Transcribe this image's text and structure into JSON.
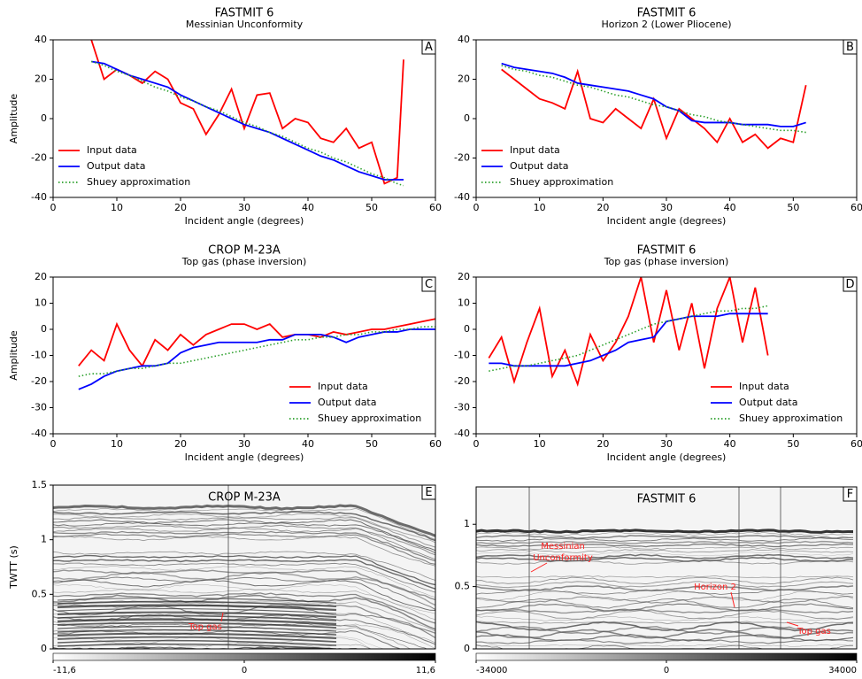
{
  "chart_data": [
    {
      "type": "line",
      "title": "FASTMIT 6",
      "subtitle": "Messinian Unconformity",
      "panel": "A",
      "ylabel": "Amplitude",
      "xlabel": "Incident angle (degrees)",
      "x": [
        6,
        8,
        10,
        12,
        14,
        16,
        18,
        20,
        22,
        24,
        26,
        28,
        30,
        32,
        34,
        36,
        38,
        40,
        42,
        44,
        46,
        48,
        50,
        52,
        54,
        55
      ],
      "series": [
        {
          "name": "Input data",
          "color": "#ff0000",
          "style": "solid",
          "values": [
            40,
            20,
            25,
            22,
            18,
            24,
            20,
            8,
            5,
            -8,
            2,
            15,
            -5,
            12,
            13,
            -5,
            0,
            -2,
            -10,
            -12,
            -5,
            -15,
            -12,
            -33,
            -30,
            30
          ]
        },
        {
          "name": "Output data",
          "color": "#0000ff",
          "style": "solid",
          "values": [
            29,
            28,
            25,
            22,
            20,
            18,
            16,
            12,
            9,
            6,
            3,
            0,
            -3,
            -5,
            -7,
            -10,
            -13,
            -16,
            -19,
            -21,
            -24,
            -27,
            -29,
            -31,
            -31,
            -31
          ]
        },
        {
          "name": "Shuey approximation",
          "color": "#2ca02c",
          "style": "dotted",
          "values": [
            29,
            27,
            24,
            22,
            19,
            16,
            14,
            11,
            9,
            6,
            4,
            1,
            -2,
            -4,
            -7,
            -9,
            -12,
            -15,
            -17,
            -20,
            -22,
            -25,
            -28,
            -30,
            -33,
            -34
          ]
        }
      ],
      "xlim": [
        0,
        60
      ],
      "xticks": [
        0,
        10,
        20,
        30,
        40,
        50,
        60
      ],
      "ylim": [
        -40,
        40
      ],
      "yticks": [
        -40,
        -20,
        0,
        20,
        40
      ],
      "legend": "lower left"
    },
    {
      "type": "line",
      "title": "FASTMIT 6",
      "subtitle": "Horizon 2 (Lower Pliocene)",
      "panel": "B",
      "xlabel": "Incident angle (degrees)",
      "x": [
        4,
        6,
        8,
        10,
        12,
        14,
        16,
        18,
        20,
        22,
        24,
        26,
        28,
        30,
        32,
        34,
        36,
        38,
        40,
        42,
        44,
        46,
        48,
        50,
        52
      ],
      "series": [
        {
          "name": "Input data",
          "color": "#ff0000",
          "style": "solid",
          "values": [
            25,
            20,
            15,
            10,
            8,
            5,
            24,
            0,
            -2,
            5,
            0,
            -5,
            10,
            -10,
            5,
            0,
            -5,
            -12,
            0,
            -12,
            -8,
            -15,
            -10,
            -12,
            17
          ]
        },
        {
          "name": "Output data",
          "color": "#0000ff",
          "style": "solid",
          "values": [
            28,
            26,
            25,
            24,
            23,
            21,
            18,
            17,
            16,
            15,
            14,
            12,
            10,
            6,
            4,
            -1,
            -2,
            -2,
            -2,
            -3,
            -3,
            -3,
            -4,
            -4,
            -2
          ]
        },
        {
          "name": "Shuey approximation",
          "color": "#2ca02c",
          "style": "dotted",
          "values": [
            27,
            25,
            24,
            22,
            21,
            19,
            17,
            16,
            14,
            12,
            11,
            9,
            7,
            6,
            4,
            2,
            1,
            -1,
            -2,
            -3,
            -4,
            -5,
            -6,
            -6,
            -7
          ]
        }
      ],
      "xlim": [
        0,
        60
      ],
      "xticks": [
        0,
        10,
        20,
        30,
        40,
        50,
        60
      ],
      "ylim": [
        -40,
        40
      ],
      "yticks": [
        -40,
        -20,
        0,
        20,
        40
      ],
      "legend": "lower left"
    },
    {
      "type": "line",
      "title": "CROP M-23A",
      "subtitle": "Top gas (phase inversion)",
      "panel": "C",
      "ylabel": "Amplitude",
      "xlabel": "Incident angle (degrees)",
      "x": [
        4,
        6,
        8,
        10,
        12,
        14,
        16,
        18,
        20,
        22,
        24,
        26,
        28,
        30,
        32,
        34,
        36,
        38,
        40,
        42,
        44,
        46,
        48,
        50,
        52,
        54,
        56,
        58,
        60
      ],
      "series": [
        {
          "name": "Input data",
          "color": "#ff0000",
          "style": "solid",
          "values": [
            -14,
            -8,
            -12,
            2,
            -8,
            -14,
            -4,
            -8,
            -2,
            -6,
            -2,
            0,
            2,
            2,
            0,
            2,
            -3,
            -2,
            -2,
            -3,
            -1,
            -2,
            -1,
            0,
            0,
            1,
            2,
            3,
            4
          ]
        },
        {
          "name": "Output data",
          "color": "#0000ff",
          "style": "solid",
          "values": [
            -23,
            -21,
            -18,
            -16,
            -15,
            -14,
            -14,
            -13,
            -9,
            -7,
            -6,
            -5,
            -5,
            -5,
            -5,
            -4,
            -4,
            -2,
            -2,
            -2,
            -3,
            -5,
            -3,
            -2,
            -1,
            -1,
            0,
            0,
            0
          ]
        },
        {
          "name": "Shuey approximation",
          "color": "#2ca02c",
          "style": "dotted",
          "values": [
            -18,
            -17,
            -17,
            -16,
            -15,
            -15,
            -14,
            -13,
            -13,
            -12,
            -11,
            -10,
            -9,
            -8,
            -7,
            -6,
            -5,
            -4,
            -4,
            -3,
            -3,
            -2,
            -2,
            -1,
            -1,
            0,
            0,
            1,
            1
          ]
        }
      ],
      "xlim": [
        0,
        60
      ],
      "xticks": [
        0,
        10,
        20,
        30,
        40,
        50,
        60
      ],
      "ylim": [
        -40,
        20
      ],
      "yticks": [
        -40,
        -30,
        -20,
        -10,
        0,
        10,
        20
      ],
      "legend": "lower right"
    },
    {
      "type": "line",
      "title": "FASTMIT 6",
      "subtitle": "Top gas (phase inversion)",
      "panel": "D",
      "xlabel": "Incident angle (degrees)",
      "x": [
        2,
        4,
        6,
        8,
        10,
        12,
        14,
        16,
        18,
        20,
        22,
        24,
        26,
        28,
        30,
        32,
        34,
        36,
        38,
        40,
        42,
        44,
        46
      ],
      "series": [
        {
          "name": "Input data",
          "color": "#ff0000",
          "style": "solid",
          "values": [
            -11,
            -3,
            -20,
            -5,
            8,
            -18,
            -8,
            -21,
            -2,
            -12,
            -5,
            5,
            20,
            -5,
            15,
            -8,
            10,
            -15,
            8,
            20,
            -5,
            16,
            -10
          ]
        },
        {
          "name": "Output data",
          "color": "#0000ff",
          "style": "solid",
          "values": [
            -13,
            -13,
            -14,
            -14,
            -14,
            -14,
            -14,
            -13,
            -12,
            -10,
            -8,
            -5,
            -4,
            -3,
            3,
            4,
            5,
            5,
            5,
            6,
            6,
            6,
            6
          ]
        },
        {
          "name": "Shuey approximation",
          "color": "#2ca02c",
          "style": "dotted",
          "values": [
            -16,
            -15,
            -14,
            -14,
            -13,
            -12,
            -11,
            -10,
            -8,
            -6,
            -4,
            -2,
            0,
            2,
            3,
            4,
            5,
            6,
            7,
            7,
            8,
            8,
            9
          ]
        }
      ],
      "xlim": [
        0,
        60
      ],
      "xticks": [
        0,
        10,
        20,
        30,
        40,
        50,
        60
      ],
      "ylim": [
        -40,
        20
      ],
      "yticks": [
        -40,
        -30,
        -20,
        -10,
        0,
        10,
        20
      ],
      "legend": "lower right"
    },
    {
      "type": "seismic",
      "title": "CROP M-23A",
      "panel": "E",
      "ylabel": "TWTT (s)",
      "ylim": [
        0,
        1.5
      ],
      "yticks": [
        0,
        0.5,
        1,
        1.5
      ],
      "cblim": [
        -11.6,
        11.6
      ],
      "cbticks": [
        {
          "value": -11.6,
          "label": "-11,6"
        },
        0,
        {
          "value": 11.6,
          "label": "11,6"
        }
      ],
      "annotations": [
        {
          "text": [
            "Top gas"
          ]
        }
      ]
    },
    {
      "type": "seismic",
      "title": "FASTMIT 6",
      "panel": "F",
      "ylim": [
        0,
        1.3
      ],
      "yticks": [
        0,
        0.5,
        1
      ],
      "cblim": [
        -34000,
        34000
      ],
      "cbticks": [
        -34000,
        0,
        34000
      ],
      "annotations": [
        {
          "text": [
            "Messinian",
            "Unconformity"
          ]
        },
        {
          "text": [
            "Horizon 2"
          ]
        },
        {
          "text": [
            "Top gas"
          ]
        }
      ]
    }
  ]
}
